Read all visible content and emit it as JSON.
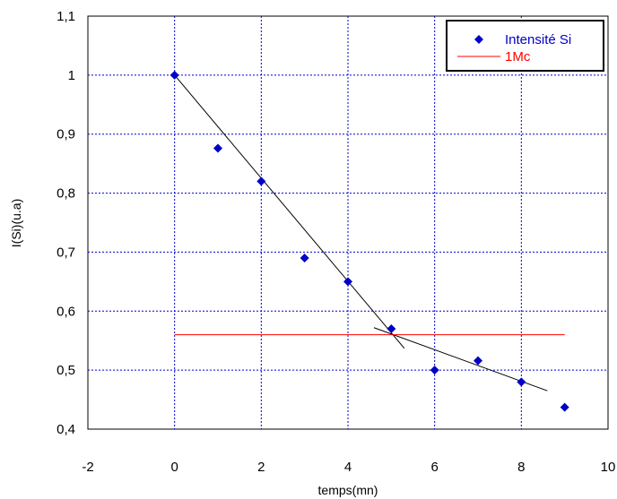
{
  "chart_data": {
    "type": "scatter",
    "title": "",
    "xlabel": "temps(mn)",
    "ylabel": "I(Si)(u.a)",
    "xlim": [
      -2,
      10
    ],
    "ylim": [
      0.4,
      1.1
    ],
    "x_ticks": [
      "-2",
      "0",
      "2",
      "4",
      "6",
      "8",
      "10"
    ],
    "y_ticks": [
      "0,4",
      "0,5",
      "0,6",
      "0,7",
      "0,8",
      "0,9",
      "1",
      "1,1"
    ],
    "grid": true,
    "legend_position": "top-right",
    "series": [
      {
        "name": "Intensité Si",
        "kind": "scatter",
        "marker": "diamond",
        "color": "#0000c8",
        "x": [
          0,
          1,
          2,
          3,
          4,
          5,
          6,
          7,
          8,
          9
        ],
        "y": [
          1.0,
          0.876,
          0.82,
          0.69,
          0.65,
          0.57,
          0.5,
          0.516,
          0.48,
          0.437
        ]
      },
      {
        "name": "1Mc",
        "kind": "line",
        "color": "#ff0000",
        "x": [
          0,
          9
        ],
        "y": [
          0.56,
          0.56
        ]
      }
    ],
    "fit_lines": [
      {
        "color": "#000000",
        "x": [
          0,
          5.3
        ],
        "y": [
          1.0,
          0.537
        ]
      },
      {
        "color": "#000000",
        "x": [
          4.6,
          8.6
        ],
        "y": [
          0.572,
          0.465
        ]
      }
    ]
  }
}
